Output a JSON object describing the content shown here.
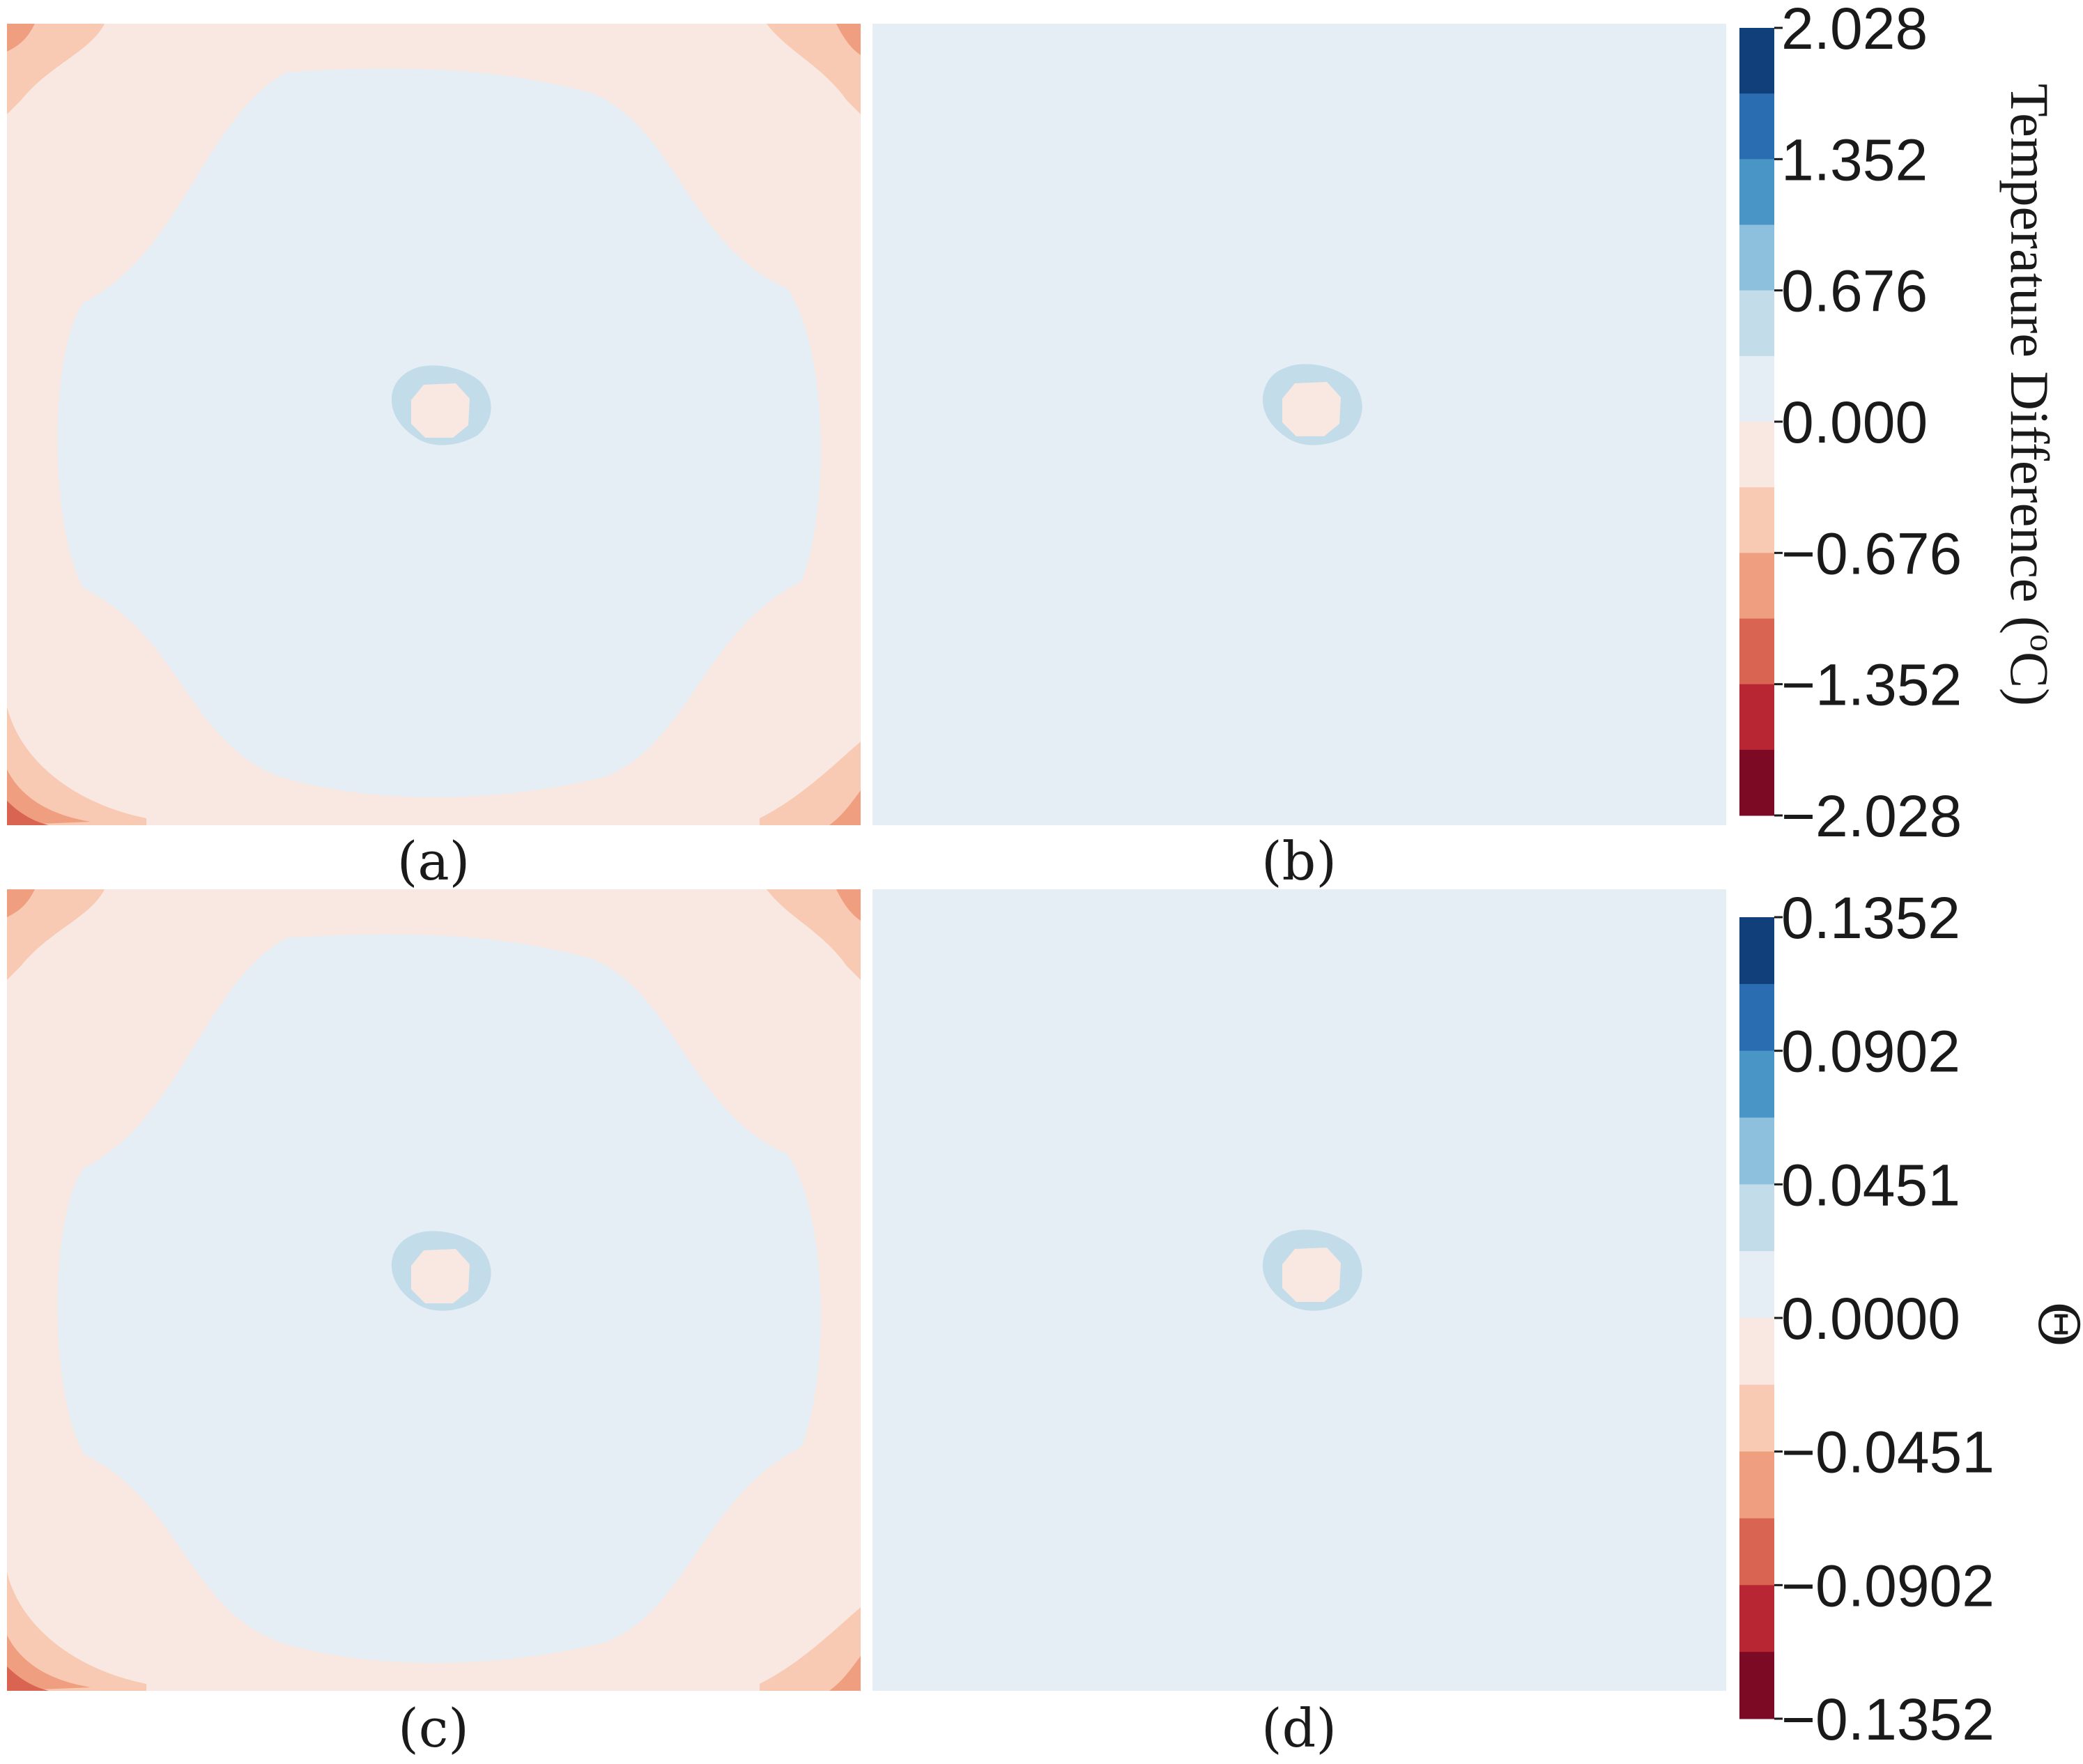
{
  "chart_data": [
    {
      "type": "heatmap",
      "panel_label": "(a)",
      "field": "corner_wide",
      "colorbar": "top",
      "center_value_range": "0.000 to -0.676",
      "ring_value_range": "0.676 to 0.000",
      "background_value_range": "0.000 to -0.676",
      "corner_peak_value_range": "-1.352 to -2.028"
    },
    {
      "type": "heatmap",
      "panel_label": "(b)",
      "field": "uniform",
      "colorbar": "top",
      "background_value_range": "0.676 to 0.000",
      "ring_value_range": "0.676 to 0.000",
      "center_value_range": "0.000 to -0.676"
    },
    {
      "type": "heatmap",
      "panel_label": "(c)",
      "field": "corner_wide",
      "colorbar": "bottom",
      "center_value_range": "0.0000 to -0.0451",
      "ring_value_range": "0.0451 to 0.0000",
      "background_value_range": "0.0000 to -0.0451",
      "corner_peak_value_range": "-0.0902 to -0.1352"
    },
    {
      "type": "heatmap",
      "panel_label": "(d)",
      "field": "uniform",
      "colorbar": "bottom",
      "background_value_range": "0.0451 to 0.0000",
      "ring_value_range": "0.0451 to 0.0000",
      "center_value_range": "0.0000 to -0.0451"
    }
  ],
  "colorbars": {
    "top": {
      "title": "Temperature Difference (°C)",
      "title_main": "Temperature Difference (",
      "title_sup": "o",
      "title_end": "C)",
      "ticks": [
        "2.028",
        "1.352",
        "0.676",
        "0.000",
        "−0.676",
        "−1.352",
        "−2.028"
      ],
      "range": [
        -2.028,
        2.028
      ],
      "levels": 12
    },
    "bottom": {
      "title": "Θ",
      "ticks": [
        "0.1352",
        "0.0902",
        "0.0451",
        "0.0000",
        "−0.0451",
        "−0.0902",
        "−0.1352"
      ],
      "range": [
        -0.1352,
        0.1352
      ],
      "levels": 12
    }
  },
  "colors": {
    "levels_top_to_bottom": [
      "#113f7a",
      "#2a6db0",
      "#4895c6",
      "#8dc0dc",
      "#c2dcea",
      "#e5eef4",
      "#f8e8e1",
      "#f8cab4",
      "#ef9f7f",
      "#d96452",
      "#b72632",
      "#7d0a25"
    ]
  }
}
